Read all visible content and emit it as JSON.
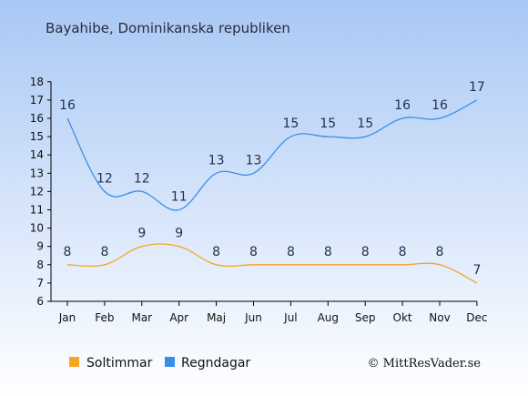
{
  "chart_data": {
    "type": "line",
    "title": "Bayahibe, Dominikanska republiken",
    "categories": [
      "Jan",
      "Feb",
      "Mar",
      "Apr",
      "Maj",
      "Jun",
      "Jul",
      "Aug",
      "Sep",
      "Okt",
      "Nov",
      "Dec"
    ],
    "series": [
      {
        "name": "Soltimmar",
        "values": [
          8,
          8,
          9,
          9,
          8,
          8,
          8,
          8,
          8,
          8,
          8,
          7
        ],
        "color": "#f5a623"
      },
      {
        "name": "Regndagar",
        "values": [
          16,
          12,
          12,
          11,
          13,
          13,
          15,
          15,
          15,
          16,
          16,
          17
        ],
        "color": "#3a8ee6"
      }
    ],
    "ylim": [
      6,
      18
    ],
    "yticks": [
      "6",
      "7",
      "8",
      "9",
      "10",
      "11",
      "12",
      "13",
      "14",
      "15",
      "16",
      "17",
      "18"
    ],
    "grid": false,
    "legend_position": "bottom-left",
    "credit": "© MittResVader.se",
    "colors": {
      "background_top": "#a9c8f5",
      "background_bottom": "#ffffff"
    }
  }
}
